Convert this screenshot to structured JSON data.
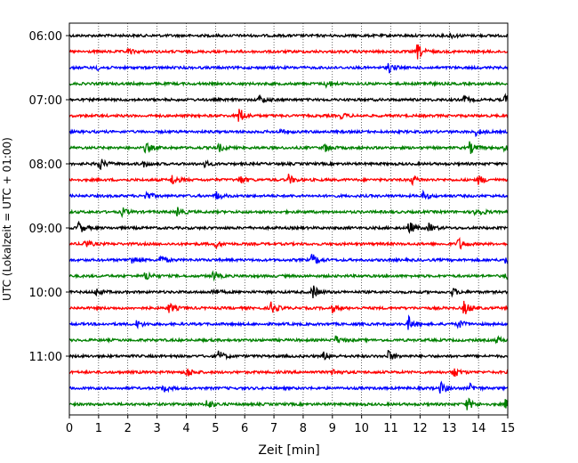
{
  "chart_data": {
    "type": "line",
    "title": "",
    "xlabel": "Zeit  [min]",
    "ylabel": "UTC (Lokalzeit = UTC + 01:00)",
    "xlim": [
      0,
      15
    ],
    "x_ticks": [
      "0",
      "1",
      "2",
      "3",
      "4",
      "5",
      "6",
      "7",
      "8",
      "9",
      "10",
      "11",
      "12",
      "13",
      "14",
      "15"
    ],
    "y_ticks": [
      "06:00",
      "07:00",
      "08:00",
      "09:00",
      "10:00",
      "11:00"
    ],
    "grid": "vertical dotted lines at each minute",
    "color_cycle": [
      "#000000",
      "#ff0000",
      "#0000ff",
      "#008000"
    ],
    "row_interval_min": 15,
    "rows": [
      {
        "start": "06:00",
        "events": [
          {
            "t": 13.0,
            "a": 0.6
          }
        ]
      },
      {
        "start": "06:15",
        "events": [
          {
            "t": 11.9,
            "a": 1.8
          },
          {
            "t": 2.0,
            "a": 0.6
          }
        ]
      },
      {
        "start": "06:30",
        "events": [
          {
            "t": 10.9,
            "a": 1.3
          },
          {
            "t": 0.9,
            "a": 0.6
          }
        ]
      },
      {
        "start": "06:45",
        "events": [
          {
            "t": 8.8,
            "a": 0.9
          },
          {
            "t": 12.1,
            "a": 0.5
          }
        ]
      },
      {
        "start": "07:00",
        "events": [
          {
            "t": 6.5,
            "a": 0.9
          },
          {
            "t": 13.5,
            "a": 0.8
          },
          {
            "t": 14.9,
            "a": 1.0
          }
        ]
      },
      {
        "start": "07:15",
        "events": [
          {
            "t": 5.8,
            "a": 2.0
          },
          {
            "t": 9.3,
            "a": 0.6
          }
        ]
      },
      {
        "start": "07:30",
        "events": [
          {
            "t": 13.9,
            "a": 0.8
          },
          {
            "t": 7.2,
            "a": 0.5
          }
        ]
      },
      {
        "start": "07:45",
        "events": [
          {
            "t": 2.6,
            "a": 1.2
          },
          {
            "t": 5.1,
            "a": 0.9
          },
          {
            "t": 8.7,
            "a": 1.0
          },
          {
            "t": 13.7,
            "a": 1.4
          },
          {
            "t": 14.9,
            "a": 1.0
          }
        ]
      },
      {
        "start": "08:00",
        "events": [
          {
            "t": 1.0,
            "a": 1.6
          },
          {
            "t": 2.5,
            "a": 0.8
          },
          {
            "t": 4.6,
            "a": 0.7
          }
        ]
      },
      {
        "start": "08:15",
        "events": [
          {
            "t": 3.5,
            "a": 1.3
          },
          {
            "t": 5.8,
            "a": 1.1
          },
          {
            "t": 7.5,
            "a": 1.1
          },
          {
            "t": 11.7,
            "a": 1.1
          },
          {
            "t": 14.0,
            "a": 1.1
          }
        ]
      },
      {
        "start": "08:30",
        "events": [
          {
            "t": 2.6,
            "a": 1.0
          },
          {
            "t": 5.0,
            "a": 1.1
          },
          {
            "t": 12.1,
            "a": 1.0
          }
        ]
      },
      {
        "start": "08:45",
        "events": [
          {
            "t": 1.8,
            "a": 0.9
          },
          {
            "t": 3.7,
            "a": 1.1
          },
          {
            "t": 13.9,
            "a": 1.5
          }
        ]
      },
      {
        "start": "09:00",
        "events": [
          {
            "t": 0.3,
            "a": 1.5
          },
          {
            "t": 11.6,
            "a": 1.6
          },
          {
            "t": 12.3,
            "a": 1.0
          }
        ]
      },
      {
        "start": "09:15",
        "events": [
          {
            "t": 0.5,
            "a": 1.1
          },
          {
            "t": 5.0,
            "a": 0.8
          },
          {
            "t": 13.3,
            "a": 1.5
          }
        ]
      },
      {
        "start": "09:30",
        "events": [
          {
            "t": 2.1,
            "a": 1.1
          },
          {
            "t": 3.1,
            "a": 1.0
          },
          {
            "t": 8.3,
            "a": 1.5
          },
          {
            "t": 14.9,
            "a": 0.9
          }
        ]
      },
      {
        "start": "09:45",
        "events": [
          {
            "t": 2.6,
            "a": 1.2
          },
          {
            "t": 4.9,
            "a": 0.9
          },
          {
            "t": 14.9,
            "a": 0.9
          }
        ]
      },
      {
        "start": "10:00",
        "events": [
          {
            "t": 0.9,
            "a": 0.9
          },
          {
            "t": 4.9,
            "a": 0.8
          },
          {
            "t": 8.3,
            "a": 1.8
          },
          {
            "t": 13.1,
            "a": 0.9
          }
        ]
      },
      {
        "start": "10:15",
        "events": [
          {
            "t": 3.4,
            "a": 1.2
          },
          {
            "t": 6.9,
            "a": 1.4
          },
          {
            "t": 9.0,
            "a": 0.9
          },
          {
            "t": 13.5,
            "a": 1.8
          }
        ]
      },
      {
        "start": "10:30",
        "events": [
          {
            "t": 2.3,
            "a": 0.8
          },
          {
            "t": 11.6,
            "a": 1.6
          },
          {
            "t": 13.3,
            "a": 1.0
          }
        ]
      },
      {
        "start": "10:45",
        "events": [
          {
            "t": 9.1,
            "a": 0.9
          },
          {
            "t": 14.6,
            "a": 0.8
          }
        ]
      },
      {
        "start": "11:00",
        "events": [
          {
            "t": 5.1,
            "a": 1.2
          },
          {
            "t": 8.7,
            "a": 0.9
          },
          {
            "t": 10.9,
            "a": 1.3
          }
        ]
      },
      {
        "start": "11:15",
        "events": [
          {
            "t": 4.0,
            "a": 1.3
          },
          {
            "t": 9.0,
            "a": 0.8
          },
          {
            "t": 13.1,
            "a": 1.6
          }
        ]
      },
      {
        "start": "11:30",
        "events": [
          {
            "t": 3.2,
            "a": 0.9
          },
          {
            "t": 12.7,
            "a": 1.4
          },
          {
            "t": 13.7,
            "a": 0.9
          }
        ]
      },
      {
        "start": "11:45",
        "events": [
          {
            "t": 4.7,
            "a": 1.2
          },
          {
            "t": 13.6,
            "a": 1.5
          },
          {
            "t": 14.9,
            "a": 1.1
          }
        ]
      }
    ]
  }
}
